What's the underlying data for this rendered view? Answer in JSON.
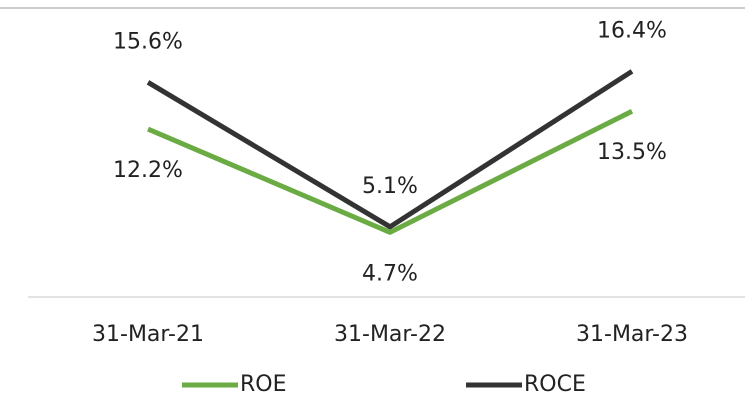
{
  "chart_data": {
    "type": "line",
    "categories": [
      "31-Mar-21",
      "31-Mar-22",
      "31-Mar-23"
    ],
    "series": [
      {
        "name": "ROE",
        "color": "#6aab44",
        "values": [
          12.2,
          4.7,
          13.5
        ],
        "value_labels": [
          "12.2%",
          "4.7%",
          "13.5%"
        ]
      },
      {
        "name": "ROCE",
        "color": "#333333",
        "values": [
          15.6,
          5.1,
          16.4
        ],
        "value_labels": [
          "15.6%",
          "5.1%",
          "16.4%"
        ]
      }
    ],
    "ylim": [
      0,
      21
    ]
  }
}
